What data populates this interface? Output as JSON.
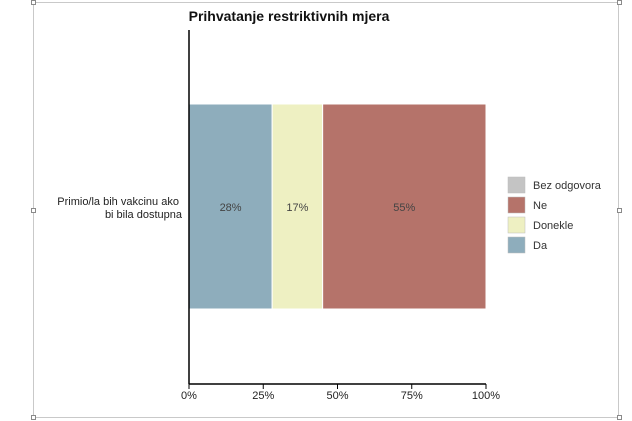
{
  "chart_data": {
    "type": "bar",
    "orientation": "horizontal",
    "stacked": true,
    "title": "Prihvatanje restriktivnih mjera",
    "categories": [
      "Primio/la bih vakcinu ako bi bila dostupna"
    ],
    "category_lines": [
      "Primio/la bih vakcinu ako",
      "bi bila dostupna"
    ],
    "series": [
      {
        "name": "Da",
        "values": [
          28
        ],
        "color": "#8eadbc",
        "label": "28%"
      },
      {
        "name": "Donekle",
        "values": [
          17
        ],
        "color": "#eef0c2",
        "label": "17%"
      },
      {
        "name": "Ne",
        "values": [
          55
        ],
        "color": "#b5736a",
        "label": "55%"
      },
      {
        "name": "Bez odgovora",
        "values": [
          0
        ],
        "color": "#c4c4c4",
        "label": ""
      }
    ],
    "legend_order": [
      "Bez odgovora",
      "Ne",
      "Donekle",
      "Da"
    ],
    "xlim": [
      0,
      100
    ],
    "x_ticks": [
      0,
      25,
      50,
      75,
      100
    ],
    "x_tick_labels": [
      "0%",
      "25%",
      "50%",
      "75%",
      "100%"
    ],
    "legend_position": "right",
    "grid": false
  }
}
